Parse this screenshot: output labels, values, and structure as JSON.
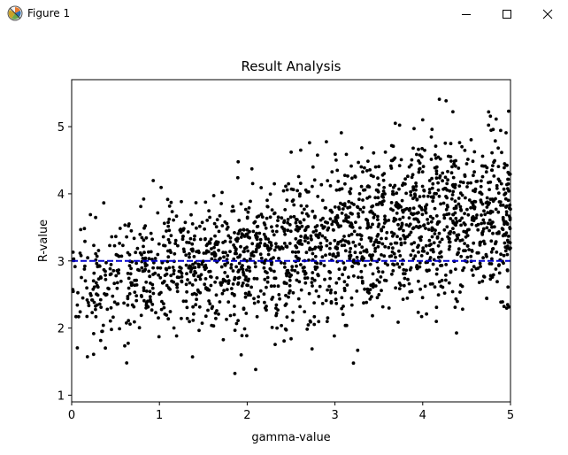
{
  "window": {
    "title": "Figure 1",
    "icon": "matplotlib-logo-icon",
    "controls": [
      "minimize-icon",
      "maximize-icon",
      "close-icon"
    ]
  },
  "chart_data": {
    "type": "scatter",
    "title": "Result Analysis",
    "xlabel": "gamma-value",
    "ylabel": "R-value",
    "xlim": [
      0,
      5
    ],
    "ylim": [
      0.9,
      5.7
    ],
    "xticks": [
      0,
      1,
      2,
      3,
      4,
      5
    ],
    "yticks": [
      1,
      2,
      3,
      4,
      5
    ],
    "grid": false,
    "point_color": "#000000",
    "point_count": 2000,
    "trend": "R-value increases with gamma-value, from about 2.6 at gamma 0 to about 3.8 at gamma 5",
    "reference_line": {
      "y": 3.0,
      "style": "dashed",
      "color": "#0000cc"
    }
  }
}
